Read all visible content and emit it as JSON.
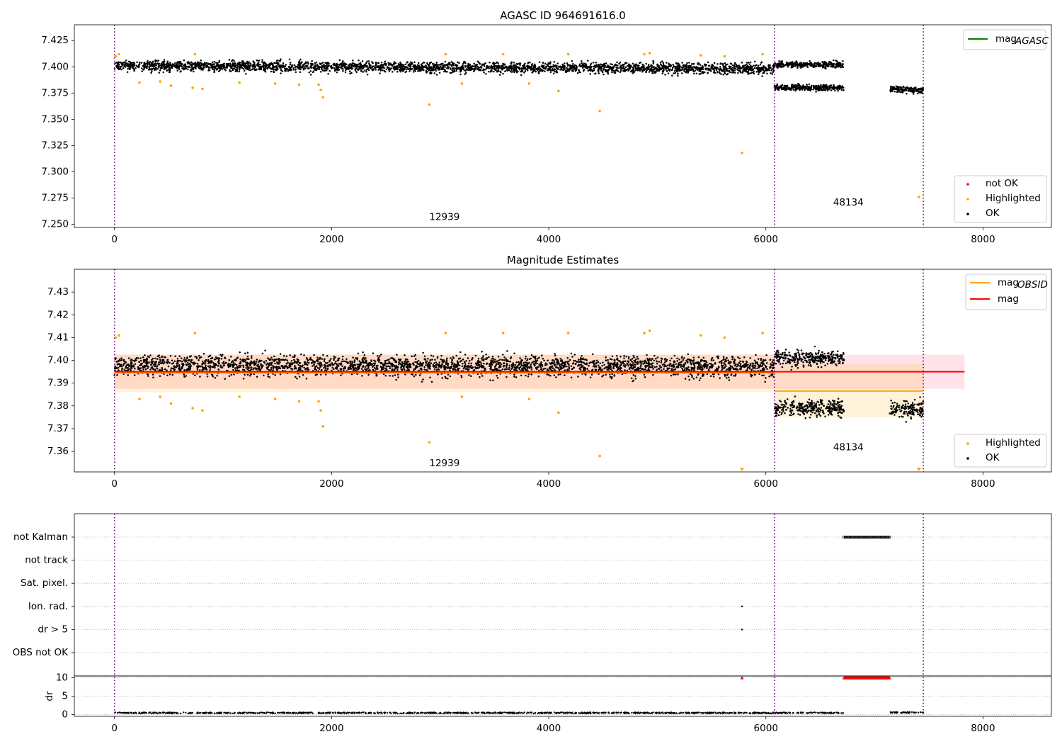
{
  "chart_data": [
    {
      "type": "scatter",
      "title": "AGASC ID 964691616.0",
      "xlim": [
        -370,
        8630
      ],
      "ylim": [
        7.247,
        7.44
      ],
      "xticks": [
        0,
        2000,
        4000,
        6000,
        8000
      ],
      "yticks": [
        7.25,
        7.275,
        7.3,
        7.325,
        7.35,
        7.375,
        7.4,
        7.425
      ],
      "ytick_labels": [
        "7.250",
        "7.275",
        "7.300",
        "7.325",
        "7.350",
        "7.375",
        "7.400",
        "7.425"
      ],
      "vlines": [
        0,
        6080,
        7450
      ],
      "annotations": [
        {
          "text": "12939",
          "x": 3040,
          "y": 7.254
        },
        {
          "text": "48134",
          "x": 6760,
          "y": 7.268
        }
      ],
      "legend_lines": [
        {
          "label": "mag",
          "sub": "AGASC",
          "color": "#008000"
        }
      ],
      "legend_markers": [
        {
          "label": "not OK",
          "color": "#ff0000"
        },
        {
          "label": "Highlighted",
          "color": "#ffa500"
        },
        {
          "label": "OK",
          "color": "#000000"
        }
      ],
      "ok_segments": [
        {
          "x0": 0,
          "x1": 6080,
          "y0": 7.401,
          "y1": 7.398,
          "spread": 0.01
        },
        {
          "x0": 6080,
          "x1": 6720,
          "y0": 7.38,
          "y1": 7.38,
          "spread": 0.006
        },
        {
          "x0": 6080,
          "x1": 6720,
          "y0": 7.402,
          "y1": 7.402,
          "spread": 0.006
        },
        {
          "x0": 7140,
          "x1": 7450,
          "y0": 7.379,
          "y1": 7.378,
          "spread": 0.006
        }
      ],
      "highlighted_points": [
        {
          "x": 10,
          "y": 7.41
        },
        {
          "x": 40,
          "y": 7.412
        },
        {
          "x": 230,
          "y": 7.385
        },
        {
          "x": 420,
          "y": 7.386
        },
        {
          "x": 520,
          "y": 7.382
        },
        {
          "x": 720,
          "y": 7.38
        },
        {
          "x": 740,
          "y": 7.412
        },
        {
          "x": 810,
          "y": 7.379
        },
        {
          "x": 1150,
          "y": 7.385
        },
        {
          "x": 1480,
          "y": 7.384
        },
        {
          "x": 1700,
          "y": 7.383
        },
        {
          "x": 1880,
          "y": 7.383
        },
        {
          "x": 1900,
          "y": 7.378
        },
        {
          "x": 1920,
          "y": 7.371
        },
        {
          "x": 2900,
          "y": 7.364
        },
        {
          "x": 3050,
          "y": 7.412
        },
        {
          "x": 3200,
          "y": 7.384
        },
        {
          "x": 3580,
          "y": 7.412
        },
        {
          "x": 3820,
          "y": 7.384
        },
        {
          "x": 4090,
          "y": 7.377
        },
        {
          "x": 4180,
          "y": 7.412
        },
        {
          "x": 4470,
          "y": 7.358
        },
        {
          "x": 4880,
          "y": 7.412
        },
        {
          "x": 4930,
          "y": 7.413
        },
        {
          "x": 5400,
          "y": 7.411
        },
        {
          "x": 5620,
          "y": 7.41
        },
        {
          "x": 5780,
          "y": 7.318
        },
        {
          "x": 5970,
          "y": 7.412
        },
        {
          "x": 7410,
          "y": 7.276
        }
      ]
    },
    {
      "type": "scatter",
      "title": "Magnitude Estimates",
      "xlim": [
        -370,
        8630
      ],
      "ylim": [
        7.351,
        7.44
      ],
      "xticks": [
        0,
        2000,
        4000,
        6000,
        8000
      ],
      "yticks": [
        7.36,
        7.37,
        7.38,
        7.39,
        7.4,
        7.41,
        7.42,
        7.43
      ],
      "ytick_labels": [
        "7.36",
        "7.37",
        "7.38",
        "7.39",
        "7.40",
        "7.41",
        "7.42",
        "7.43"
      ],
      "vlines": [
        0,
        6080,
        7450
      ],
      "annotations": [
        {
          "text": "12939",
          "x": 3040,
          "y": 7.3535
        },
        {
          "text": "48134",
          "x": 6760,
          "y": 7.3605
        }
      ],
      "bands": [
        {
          "x0": 0,
          "x1": 7830,
          "y0": 7.3875,
          "y1": 7.4025,
          "color": "#ffc0cb",
          "opacity": 0.45
        },
        {
          "x0": 0,
          "x1": 6080,
          "y0": 7.386,
          "y1": 7.4025,
          "color": "#ffa500",
          "opacity": 0.15
        },
        {
          "x0": 6080,
          "x1": 7450,
          "y0": 7.375,
          "y1": 7.3985,
          "color": "#ffa500",
          "opacity": 0.15
        }
      ],
      "obsid_lines": [
        {
          "x0": 0,
          "x1": 6080,
          "y": 7.3945
        },
        {
          "x0": 6080,
          "x1": 7450,
          "y": 7.3865
        }
      ],
      "mag_line": {
        "x0": 0,
        "x1": 7830,
        "y": 7.395
      },
      "legend_lines": [
        {
          "label": "mag",
          "sub": "OBSID",
          "color": "#ffa500"
        },
        {
          "label": "mag",
          "sub": "",
          "color": "#ff0000"
        }
      ],
      "legend_markers": [
        {
          "label": "Highlighted",
          "color": "#ffa500"
        },
        {
          "label": "OK",
          "color": "#000000"
        }
      ],
      "ok_segments": [
        {
          "x0": 0,
          "x1": 6080,
          "y0": 7.398,
          "y1": 7.397,
          "spread": 0.009
        },
        {
          "x0": 6080,
          "x1": 6720,
          "y0": 7.379,
          "y1": 7.379,
          "spread": 0.007
        },
        {
          "x0": 6080,
          "x1": 6720,
          "y0": 7.401,
          "y1": 7.401,
          "spread": 0.007
        },
        {
          "x0": 7140,
          "x1": 7450,
          "y0": 7.379,
          "y1": 7.378,
          "spread": 0.008
        }
      ],
      "highlighted_points": [
        {
          "x": 10,
          "y": 7.41
        },
        {
          "x": 40,
          "y": 7.411
        },
        {
          "x": 230,
          "y": 7.383
        },
        {
          "x": 420,
          "y": 7.384
        },
        {
          "x": 520,
          "y": 7.381
        },
        {
          "x": 720,
          "y": 7.379
        },
        {
          "x": 740,
          "y": 7.412
        },
        {
          "x": 810,
          "y": 7.378
        },
        {
          "x": 1150,
          "y": 7.384
        },
        {
          "x": 1480,
          "y": 7.383
        },
        {
          "x": 1700,
          "y": 7.382
        },
        {
          "x": 1880,
          "y": 7.382
        },
        {
          "x": 1900,
          "y": 7.378
        },
        {
          "x": 1920,
          "y": 7.371
        },
        {
          "x": 2900,
          "y": 7.364
        },
        {
          "x": 3050,
          "y": 7.412
        },
        {
          "x": 3200,
          "y": 7.384
        },
        {
          "x": 3580,
          "y": 7.412
        },
        {
          "x": 3820,
          "y": 7.383
        },
        {
          "x": 4090,
          "y": 7.377
        },
        {
          "x": 4180,
          "y": 7.412
        },
        {
          "x": 4470,
          "y": 7.358
        },
        {
          "x": 4880,
          "y": 7.412
        },
        {
          "x": 4930,
          "y": 7.413
        },
        {
          "x": 5400,
          "y": 7.411
        },
        {
          "x": 5620,
          "y": 7.41
        },
        {
          "x": 5970,
          "y": 7.412
        }
      ],
      "offscale_markers": [
        {
          "x": 5780
        },
        {
          "x": 7410
        }
      ]
    },
    {
      "type": "scatter",
      "title": "",
      "xlim": [
        -370,
        8630
      ],
      "xticks": [
        0,
        2000,
        4000,
        6000,
        8000
      ],
      "vlines": [
        0,
        6080,
        7450
      ],
      "flag_rows": [
        "not Kalman",
        "not track",
        "Sat. pixel.",
        "Ion. rad.",
        "dr > 5",
        "OBS not OK"
      ],
      "flag_points": [
        {
          "row": "not Kalman",
          "x0": 6720,
          "x1": 7140
        },
        {
          "row": "Ion. rad.",
          "x0": 5780,
          "x1": 5780
        },
        {
          "row": "dr > 5",
          "x0": 5780,
          "x1": 5780
        }
      ],
      "dr_panel": {
        "ylabel": "dr",
        "ylim": [
          -0.5,
          10.5
        ],
        "yticks": [
          0,
          5,
          10
        ],
        "clipped_red": [
          {
            "x0": 6720,
            "x1": 7140,
            "y": 10
          },
          {
            "x0": 5780,
            "x1": 5780,
            "y": 10
          }
        ],
        "ok_segments": [
          {
            "x0": 0,
            "x1": 6720,
            "y": 0.3
          },
          {
            "x0": 7140,
            "x1": 7450,
            "y": 0.4
          }
        ]
      }
    }
  ]
}
